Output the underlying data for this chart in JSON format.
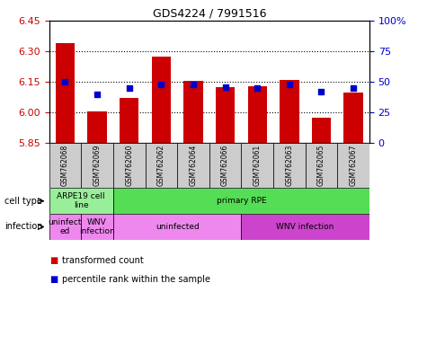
{
  "title": "GDS4224 / 7991516",
  "samples": [
    "GSM762068",
    "GSM762069",
    "GSM762060",
    "GSM762062",
    "GSM762064",
    "GSM762066",
    "GSM762061",
    "GSM762063",
    "GSM762065",
    "GSM762067"
  ],
  "transformed_counts": [
    6.34,
    6.005,
    6.07,
    6.275,
    6.155,
    6.125,
    6.13,
    6.16,
    5.975,
    6.1
  ],
  "percentile_ranks": [
    50,
    40,
    45,
    48,
    48,
    46,
    45,
    48,
    42,
    45
  ],
  "ylim_left": [
    5.85,
    6.45
  ],
  "ylim_right": [
    0,
    100
  ],
  "yticks_left": [
    5.85,
    6.0,
    6.15,
    6.3,
    6.45
  ],
  "yticks_right": [
    0,
    25,
    50,
    75,
    100
  ],
  "hlines": [
    6.0,
    6.15,
    6.3
  ],
  "bar_color": "#cc0000",
  "dot_color": "#0000cc",
  "bar_bottom": 5.85,
  "cell_types": [
    {
      "label": "ARPE19 cell\nline",
      "start": 0,
      "end": 2,
      "color": "#99ee99"
    },
    {
      "label": "primary RPE",
      "start": 2,
      "end": 10,
      "color": "#55dd55"
    }
  ],
  "infection_groups": [
    {
      "label": "uninfect\ned",
      "start": 0,
      "end": 1
    },
    {
      "label": "WNV\ninfection",
      "start": 1,
      "end": 2
    },
    {
      "label": "uninfected",
      "start": 2,
      "end": 6
    },
    {
      "label": "WNV infection",
      "start": 6,
      "end": 10
    }
  ],
  "infection_colors": [
    "#ee88ee",
    "#ee88ee",
    "#ee88ee",
    "#cc44cc"
  ],
  "sample_bg_color": "#cccccc",
  "legend_items": [
    {
      "color": "#cc0000",
      "label": "transformed count"
    },
    {
      "color": "#0000cc",
      "label": "percentile rank within the sample"
    }
  ],
  "cell_type_label": "cell type",
  "infection_label": "infection",
  "tick_color_left": "#cc0000",
  "tick_color_right": "#0000cc"
}
